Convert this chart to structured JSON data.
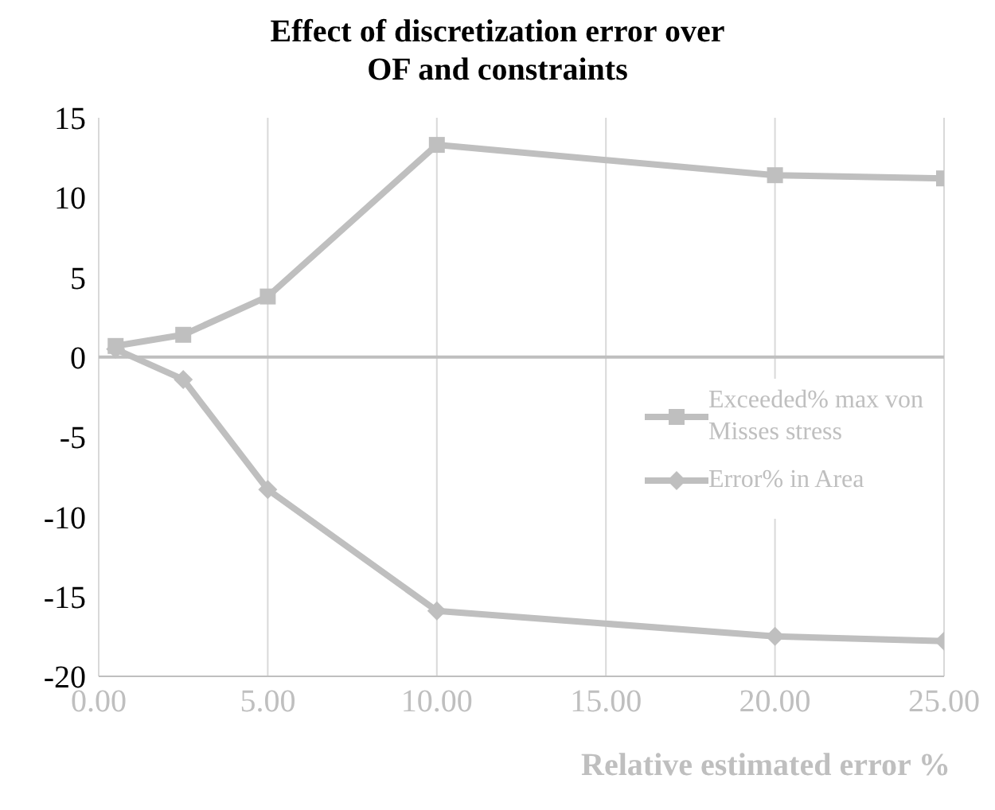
{
  "chart_data": {
    "type": "line",
    "title": "Effect of discretization error over\nOF and constraints",
    "xlabel": "Relative estimated error %",
    "series": [
      {
        "name": "Exceeded%  max von Misses stress",
        "color": "#bfbfbf",
        "marker": "square",
        "x": [
          0.5,
          2.5,
          5,
          10,
          20,
          25
        ],
        "values": [
          0.7,
          1.4,
          3.8,
          13.3,
          11.4,
          11.2
        ]
      },
      {
        "name": "Error% in Area",
        "color": "#bfbfbf",
        "marker": "diamond",
        "x": [
          0.5,
          2.5,
          5,
          10,
          20,
          25
        ],
        "values": [
          0.5,
          -1.4,
          -8.3,
          -15.9,
          -17.5,
          -17.8
        ]
      }
    ],
    "xlim": [
      0,
      25
    ],
    "xticks": [
      {
        "value": 0,
        "label": "0.00"
      },
      {
        "value": 5,
        "label": "5.00"
      },
      {
        "value": 10,
        "label": "10.00"
      },
      {
        "value": 15,
        "label": "15.00"
      },
      {
        "value": 20,
        "label": "20.00"
      },
      {
        "value": 25,
        "label": "25.00"
      }
    ],
    "ylim": [
      -20,
      15
    ],
    "yticks": [
      -20,
      -15,
      -10,
      -5,
      0,
      5,
      10,
      15
    ],
    "grid": "x",
    "legend": "right",
    "line_style": "solid",
    "ref_lines": [
      {
        "axis": "y",
        "value": 0,
        "color": "#bfbfbf"
      }
    ]
  }
}
